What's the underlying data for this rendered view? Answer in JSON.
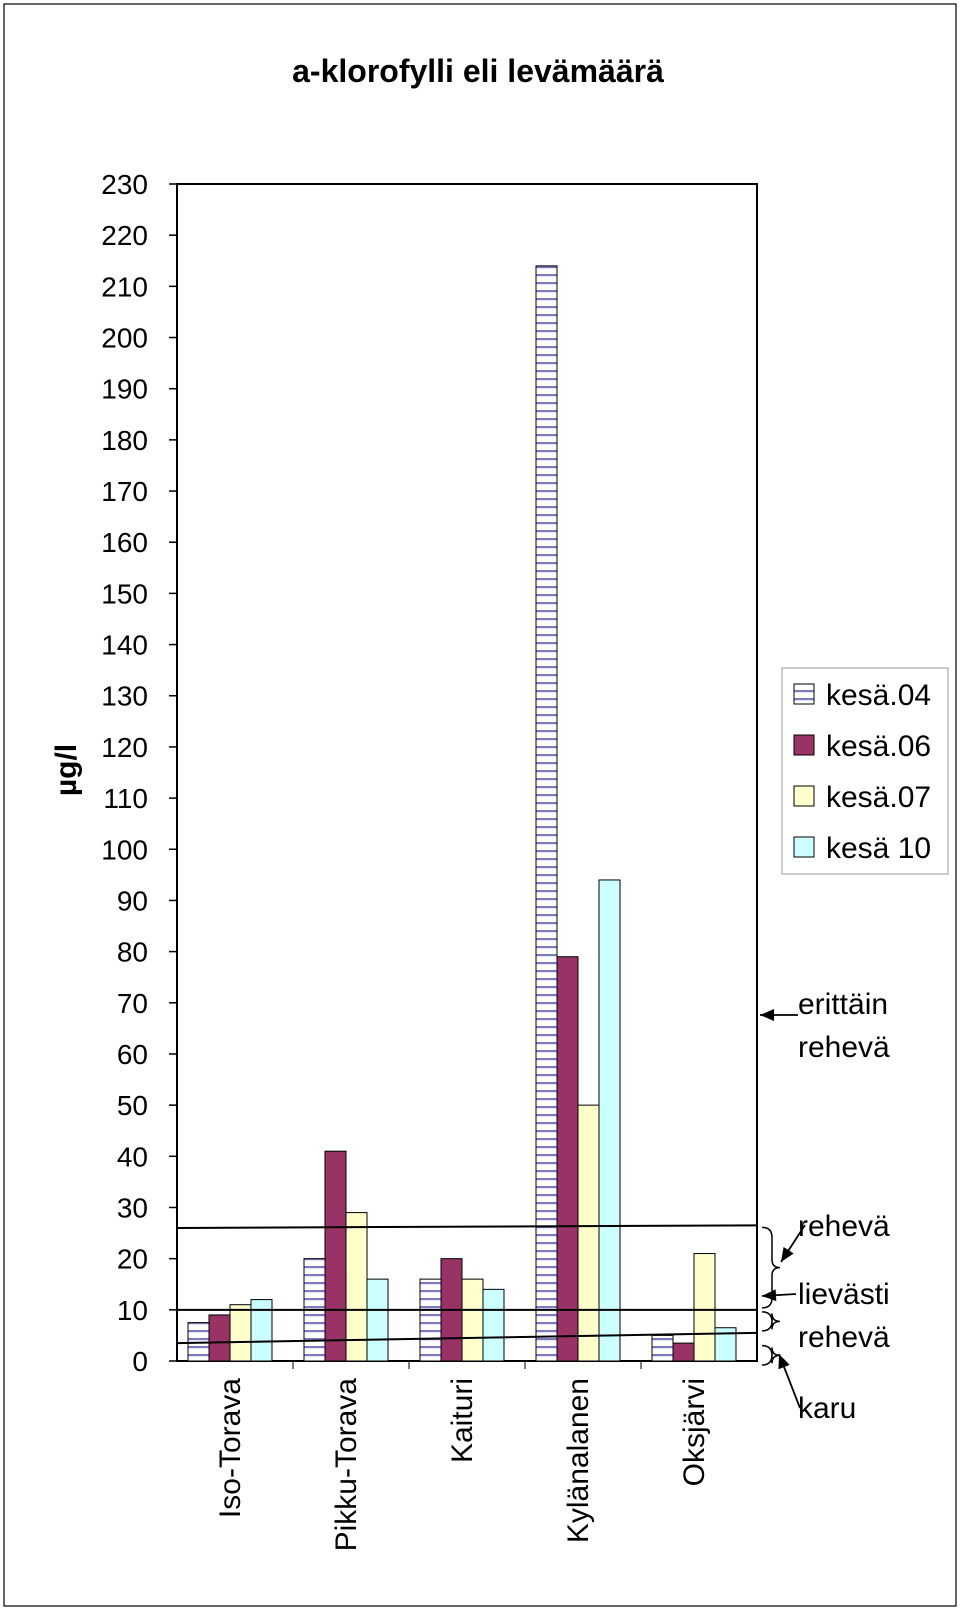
{
  "chart_data": {
    "type": "bar",
    "title": "a-klorofylli eli levämäärä",
    "ylabel": "µg/l",
    "xlabel": "",
    "ylim": [
      0,
      230
    ],
    "ytick_step": 10,
    "grid": false,
    "legend_position": "right",
    "categories": [
      "Iso-Torava",
      "Pikku-Torava",
      "Kaituri",
      "Kylänalanen",
      "Oksjärvi"
    ],
    "series": [
      {
        "name": "kesä.04",
        "values": [
          7.5,
          20,
          16,
          214,
          5
        ],
        "color": "#ffffff",
        "pattern": "horizontal-stripes",
        "stripe_color": "#7b7bc4"
      },
      {
        "name": "kesä.06",
        "values": [
          9,
          41,
          20,
          79,
          3.5
        ],
        "color": "#993366"
      },
      {
        "name": "kesä.07",
        "values": [
          11,
          29,
          16,
          50,
          21
        ],
        "color": "#ffffcc"
      },
      {
        "name": "kesä 10",
        "values": [
          12,
          16,
          14,
          94,
          6.5
        ],
        "color": "#ccffff"
      }
    ],
    "reference_lines": [
      {
        "y_start": 26,
        "y_end": 26.5
      },
      {
        "y_start": 10,
        "y_end": 10
      },
      {
        "y_start": 3.5,
        "y_end": 5.5
      }
    ],
    "annotations": [
      {
        "text": "erittäin rehevä",
        "lines": [
          "erittäin",
          "rehevä"
        ]
      },
      {
        "text": "rehevä",
        "lines": [
          "rehevä"
        ]
      },
      {
        "text": "lievästi rehevä",
        "lines": [
          "lievästi",
          "rehevä"
        ]
      },
      {
        "text": "karu",
        "lines": [
          "karu"
        ]
      }
    ]
  }
}
